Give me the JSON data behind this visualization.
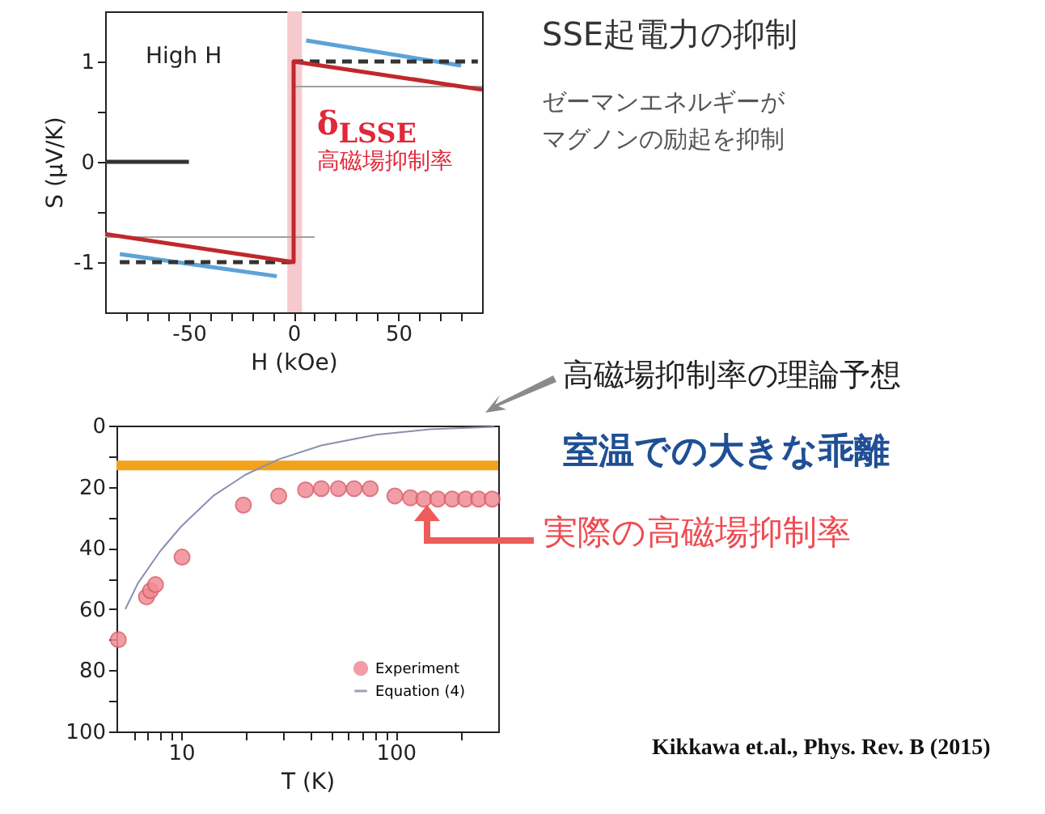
{
  "chart_data": [
    {
      "type": "line",
      "xlabel": "H (kOe)",
      "ylabel": "S (μV/K)",
      "xlim": [
        -90,
        90
      ],
      "ylim": [
        -1.5,
        1.5
      ],
      "xticks": [
        {
          "value": -80,
          "label": null
        },
        {
          "value": -70,
          "label": null
        },
        {
          "value": -60,
          "label": null
        },
        -50,
        {
          "value": -40,
          "label": null
        },
        {
          "value": -30,
          "label": null
        },
        {
          "value": -20,
          "label": null
        },
        {
          "value": -10,
          "label": null
        },
        0,
        {
          "value": 10,
          "label": null
        },
        {
          "value": 20,
          "label": null
        },
        {
          "value": 30,
          "label": null
        },
        {
          "value": 40,
          "label": null
        },
        50,
        {
          "value": 60,
          "label": null
        },
        {
          "value": 70,
          "label": null
        },
        {
          "value": 80,
          "label": null
        }
      ],
      "yticks": [
        -1,
        {
          "value": -0.5,
          "label": null
        },
        0,
        {
          "value": 0.5,
          "label": null
        },
        1
      ],
      "grid": false,
      "legend": false,
      "bands": [
        {
          "axis": "x",
          "from": -3,
          "to": 4,
          "color": "#f6c9cc"
        }
      ],
      "series": [
        {
          "color": "#a0a0a0",
          "x": [
            0,
            90
          ],
          "values": [
            0.75,
            0.75
          ]
        },
        {
          "color": "#a0a0a0",
          "x": [
            -90,
            10
          ],
          "values": [
            -0.75,
            -0.75
          ]
        },
        {
          "color": "#333333",
          "x": [
            -90,
            -50
          ],
          "values": [
            0,
            0
          ]
        },
        {
          "color": "#5ba3d9",
          "x": [
            6,
            80
          ],
          "values": [
            1.21,
            0.96
          ]
        },
        {
          "color": "#5ba3d9",
          "x": [
            -83,
            -8
          ],
          "values": [
            -0.92,
            -1.14
          ]
        },
        {
          "color": "#333333",
          "line_style": "dashed",
          "x": [
            0,
            88
          ],
          "values": [
            1,
            1
          ]
        },
        {
          "color": "#333333",
          "line_style": "dashed",
          "x": [
            -83,
            0
          ],
          "values": [
            -1,
            -1
          ]
        },
        {
          "color": "#c0282d",
          "x": [
            -90,
            0,
            0,
            90
          ],
          "values": [
            -0.72,
            -1.0,
            1.0,
            0.72
          ]
        }
      ],
      "annotations": [
        "High H",
        "δ$_{LSSE}$",
        "高磁場抑制率",
        "SSE起電力の抑制",
        "ゼーマンエネルギーが",
        "マグノンの励起を抑制"
      ]
    },
    {
      "type": "scatter",
      "xlabel": "T (K)",
      "log": "x",
      "xlim": [
        5,
        300
      ],
      "ylim": [
        100,
        0
      ],
      "xticks": [
        {
          "value": 6,
          "label": null
        },
        {
          "value": 7,
          "label": null
        },
        {
          "value": 8,
          "label": null
        },
        {
          "value": 9,
          "label": null
        },
        10,
        {
          "value": 20,
          "label": null
        },
        {
          "value": 30,
          "label": null
        },
        {
          "value": 40,
          "label": null
        },
        {
          "value": 50,
          "label": null
        },
        {
          "value": 60,
          "label": null
        },
        {
          "value": 70,
          "label": null
        },
        {
          "value": 80,
          "label": null
        },
        {
          "value": 90,
          "label": null
        },
        100,
        {
          "value": 200,
          "label": null
        }
      ],
      "yticks": [
        0,
        {
          "value": 10,
          "label": null
        },
        20,
        {
          "value": 30,
          "label": null
        },
        40,
        {
          "value": 50,
          "label": null
        },
        60,
        {
          "value": 70,
          "label": null
        },
        80,
        {
          "value": 90,
          "label": null
        },
        100
      ],
      "grid": false,
      "legend": "bottom right",
      "ref_lines": [
        {
          "axis": "y",
          "value": 13,
          "color": "#f2a31b"
        }
      ],
      "series": [
        {
          "name": "Experiment",
          "type": "scatter",
          "marker": "circle",
          "color": "#f08c96",
          "x": [
            5.1,
            6.9,
            7.2,
            7.6,
            10.1,
            19.5,
            28.5,
            38,
            45,
            54,
            64,
            76,
            99,
            117,
            135,
            157,
            183,
            211,
            243,
            281
          ],
          "values": [
            70,
            56,
            54,
            52,
            43,
            26,
            23,
            21,
            20.6,
            20.6,
            20.6,
            20.6,
            23,
            23.6,
            24,
            24,
            24,
            24,
            24,
            24
          ]
        },
        {
          "name": "Equation (4)",
          "type": "line",
          "color": "#8a8fb0",
          "x": [
            5.5,
            6.3,
            8,
            10,
            14.1,
            20,
            28.5,
            45,
            81,
            144,
            288
          ],
          "values": [
            60,
            51.5,
            41,
            33,
            23,
            16,
            11,
            6.5,
            3,
            1.2,
            0.4
          ]
        }
      ],
      "annotations": [
        "高磁場抑制率の理論予想",
        "室温での大きな乖離",
        "実際の高磁場抑制率",
        "Kikkawa et.al., Phys. Rev. B (2015)"
      ]
    }
  ]
}
